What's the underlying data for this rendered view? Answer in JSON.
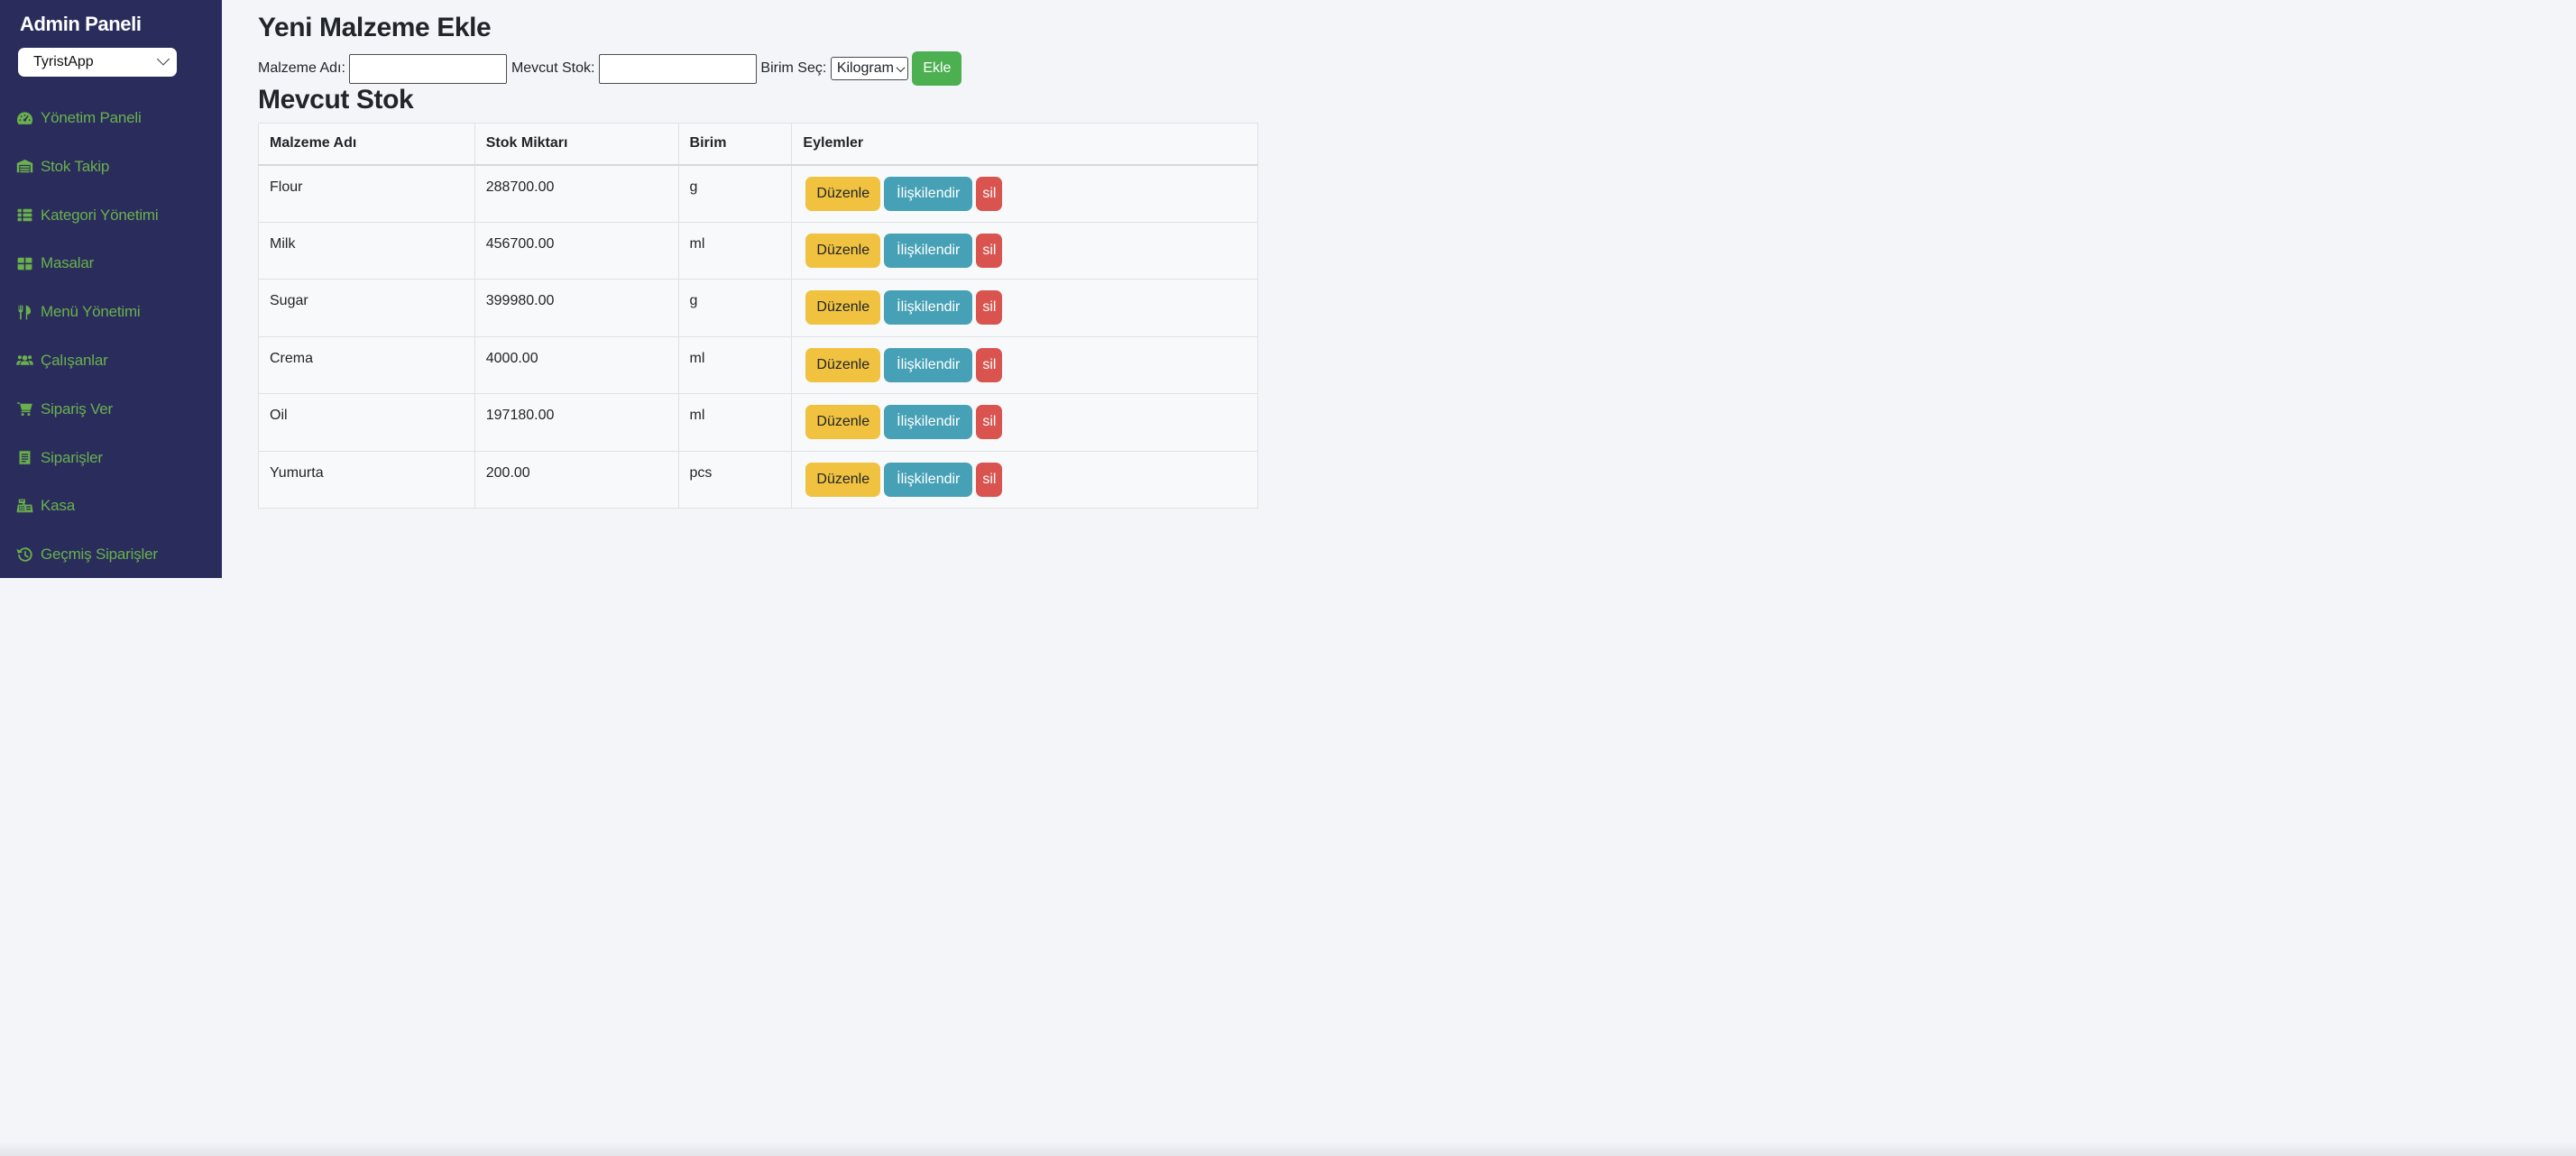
{
  "sidebar": {
    "title": "Admin Paneli",
    "app_select": {
      "value": "TyristApp"
    },
    "items": [
      {
        "label": "Yönetim Paneli",
        "icon": "gauge-icon"
      },
      {
        "label": "Stok Takip",
        "icon": "warehouse-icon"
      },
      {
        "label": "Kategori Yönetimi",
        "icon": "list-icon"
      },
      {
        "label": "Masalar",
        "icon": "table-icon"
      },
      {
        "label": "Menü Yönetimi",
        "icon": "utensils-icon"
      },
      {
        "label": "Çalışanlar",
        "icon": "users-icon"
      },
      {
        "label": "Sipariş Ver",
        "icon": "cart-icon"
      },
      {
        "label": "Siparişler",
        "icon": "receipt-icon"
      },
      {
        "label": "Kasa",
        "icon": "cash-register-icon"
      },
      {
        "label": "Geçmiş Siparişler",
        "icon": "history-icon"
      }
    ]
  },
  "main": {
    "add_section": {
      "title": "Yeni Malzeme Ekle",
      "name_label": "Malzeme Adı:",
      "name_value": "",
      "stock_label": "Mevcut Stok:",
      "stock_value": "",
      "unit_label": "Birim Seç:",
      "unit_select": {
        "value": "Kilogram"
      },
      "add_button": "Ekle"
    },
    "stock_section": {
      "title": "Mevcut Stok",
      "table": {
        "headers": [
          "Malzeme Adı",
          "Stok Miktarı",
          "Birim",
          "Eylemler"
        ],
        "rows": [
          {
            "name": "Flour",
            "qty": "288700.00",
            "unit": "g"
          },
          {
            "name": "Milk",
            "qty": "456700.00",
            "unit": "ml"
          },
          {
            "name": "Sugar",
            "qty": "399980.00",
            "unit": "g"
          },
          {
            "name": "Crema",
            "qty": "4000.00",
            "unit": "ml"
          },
          {
            "name": "Oil",
            "qty": "197180.00",
            "unit": "ml"
          },
          {
            "name": "Yumurta",
            "qty": "200.00",
            "unit": "pcs"
          }
        ],
        "actions": {
          "edit": "Düzenle",
          "associate": "İlişkilendir",
          "delete": "sil"
        }
      }
    }
  },
  "colors": {
    "sidebar_bg": "#2a2d5c",
    "sidebar_link": "#6ab04c",
    "page_bg": "#f4f5f9",
    "add_button": "#4caf50",
    "edit_button": "#f0c240",
    "associate_button": "#47a1b6",
    "delete_button": "#d9534f",
    "table_border": "#dee2e6"
  }
}
